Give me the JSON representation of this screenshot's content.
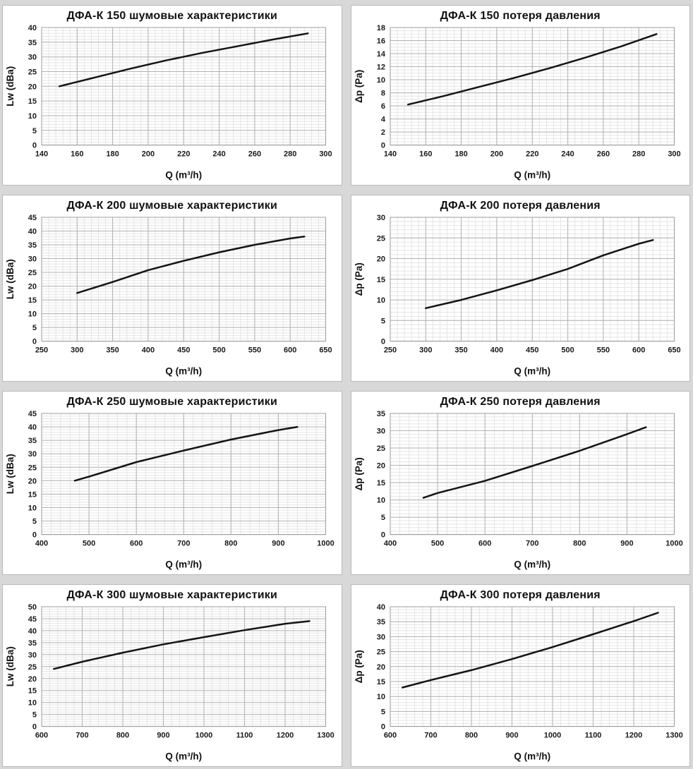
{
  "page": {
    "background_color": "#d8d8d8",
    "panel_background": "#ffffff",
    "panel_border_color": "#b9b9b9",
    "curve_color": "#141414",
    "major_grid_color": "#b2b2b2",
    "minor_grid_color": "#e5e5e5"
  },
  "chart_data": [
    {
      "type": "line",
      "title": "ДФА-К 150 шумовые характеристики",
      "xlabel": "Q (m³/h)",
      "ylabel": "Lw (dBa)",
      "xlim": [
        140,
        300
      ],
      "x_major": 20,
      "x_minor": 4,
      "ylim": [
        0,
        40
      ],
      "y_major": 5,
      "y_minor": 1,
      "grid": true,
      "legend": "none",
      "series": [
        {
          "name": "Lw",
          "points": [
            [
              150,
              20
            ],
            [
              170,
              23
            ],
            [
              190,
              26
            ],
            [
              210,
              28.8
            ],
            [
              230,
              31.3
            ],
            [
              250,
              33.6
            ],
            [
              270,
              35.9
            ],
            [
              290,
              38
            ]
          ]
        }
      ]
    },
    {
      "type": "line",
      "title": "ДФА-К 150 потеря давления",
      "xlabel": "Q (m³/h)",
      "ylabel": "Δp (Pa)",
      "xlim": [
        140,
        300
      ],
      "x_major": 20,
      "x_minor": 4,
      "ylim": [
        0,
        18
      ],
      "y_major": 2,
      "y_minor": 0.5,
      "grid": true,
      "legend": "none",
      "series": [
        {
          "name": "Δp",
          "points": [
            [
              150,
              6.2
            ],
            [
              170,
              7.5
            ],
            [
              190,
              8.9
            ],
            [
              210,
              10.3
            ],
            [
              230,
              11.8
            ],
            [
              250,
              13.4
            ],
            [
              270,
              15.1
            ],
            [
              290,
              17
            ]
          ]
        }
      ]
    },
    {
      "type": "line",
      "title": "ДФА-К 200 шумовые характеристики",
      "xlabel": "Q (m³/h)",
      "ylabel": "Lw (dBa)",
      "xlim": [
        250,
        650
      ],
      "x_major": 50,
      "x_minor": 10,
      "ylim": [
        0,
        45
      ],
      "y_major": 5,
      "y_minor": 1,
      "grid": true,
      "legend": "none",
      "series": [
        {
          "name": "Lw",
          "points": [
            [
              300,
              17.5
            ],
            [
              350,
              21.5
            ],
            [
              400,
              25.8
            ],
            [
              450,
              29.2
            ],
            [
              500,
              32.3
            ],
            [
              550,
              35
            ],
            [
              600,
              37.3
            ],
            [
              620,
              38
            ]
          ]
        }
      ]
    },
    {
      "type": "line",
      "title": "ДФА-К 200 потеря давления",
      "xlabel": "Q (m³/h)",
      "ylabel": "Δp (Pa)",
      "xlim": [
        250,
        650
      ],
      "x_major": 50,
      "x_minor": 10,
      "ylim": [
        0,
        30
      ],
      "y_major": 5,
      "y_minor": 1,
      "grid": true,
      "legend": "none",
      "series": [
        {
          "name": "Δp",
          "points": [
            [
              300,
              8
            ],
            [
              350,
              10
            ],
            [
              400,
              12.3
            ],
            [
              450,
              14.8
            ],
            [
              500,
              17.5
            ],
            [
              550,
              20.8
            ],
            [
              600,
              23.6
            ],
            [
              620,
              24.5
            ]
          ]
        }
      ]
    },
    {
      "type": "line",
      "title": "ДФА-К 250 шумовые характеристики",
      "xlabel": "Q (m³/h)",
      "ylabel": "Lw (dBa)",
      "xlim": [
        400,
        1000
      ],
      "x_major": 100,
      "x_minor": 20,
      "ylim": [
        0,
        45
      ],
      "y_major": 5,
      "y_minor": 1,
      "grid": true,
      "legend": "none",
      "series": [
        {
          "name": "Lw",
          "points": [
            [
              470,
              20
            ],
            [
              500,
              21.5
            ],
            [
              600,
              26.9
            ],
            [
              700,
              31.2
            ],
            [
              800,
              35.3
            ],
            [
              900,
              38.8
            ],
            [
              940,
              40
            ]
          ]
        }
      ]
    },
    {
      "type": "line",
      "title": "ДФА-К 250 потеря давления",
      "xlabel": "Q (m³/h)",
      "ylabel": "Δp (Pa)",
      "xlim": [
        400,
        1000
      ],
      "x_major": 100,
      "x_minor": 20,
      "ylim": [
        0,
        35
      ],
      "y_major": 5,
      "y_minor": 1,
      "grid": true,
      "legend": "none",
      "series": [
        {
          "name": "Δp",
          "points": [
            [
              470,
              10.6
            ],
            [
              500,
              12
            ],
            [
              600,
              15.5
            ],
            [
              700,
              19.8
            ],
            [
              800,
              24.2
            ],
            [
              900,
              29
            ],
            [
              940,
              31
            ]
          ]
        }
      ]
    },
    {
      "type": "line",
      "title": "ДФА-К 300 шумовые характеристики",
      "xlabel": "Q (m³/h)",
      "ylabel": "Lw (dBa)",
      "xlim": [
        600,
        1300
      ],
      "x_major": 100,
      "x_minor": 20,
      "ylim": [
        0,
        50
      ],
      "y_major": 5,
      "y_minor": 1,
      "grid": true,
      "legend": "none",
      "series": [
        {
          "name": "Lw",
          "points": [
            [
              630,
              24
            ],
            [
              700,
              27
            ],
            [
              800,
              30.8
            ],
            [
              900,
              34.3
            ],
            [
              1000,
              37.3
            ],
            [
              1100,
              40.2
            ],
            [
              1200,
              42.9
            ],
            [
              1260,
              44
            ]
          ]
        }
      ]
    },
    {
      "type": "line",
      "title": "ДФА-К 300 потеря давления",
      "xlabel": "Q (m³/h)",
      "ylabel": "Δp (Pa)",
      "xlim": [
        600,
        1300
      ],
      "x_major": 100,
      "x_minor": 20,
      "ylim": [
        0,
        40
      ],
      "y_major": 5,
      "y_minor": 1,
      "grid": true,
      "legend": "none",
      "series": [
        {
          "name": "Δp",
          "points": [
            [
              630,
              13
            ],
            [
              700,
              15.5
            ],
            [
              800,
              18.8
            ],
            [
              900,
              22.5
            ],
            [
              1000,
              26.5
            ],
            [
              1100,
              30.8
            ],
            [
              1200,
              35.2
            ],
            [
              1260,
              38
            ]
          ]
        }
      ]
    }
  ]
}
